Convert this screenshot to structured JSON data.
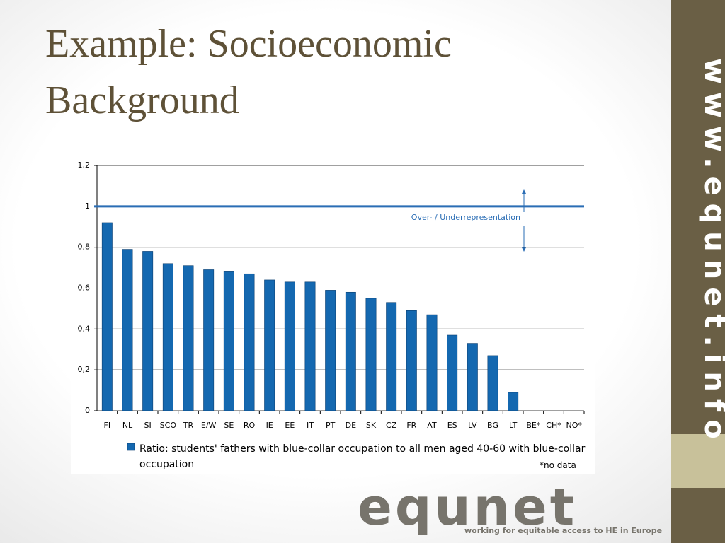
{
  "title": "Example: Socioeconomic Background",
  "side_text": "www.equnet.info",
  "logo": {
    "name": "equnet",
    "tagline": "working for equitable access to HE in Europe"
  },
  "chart_data": {
    "type": "bar",
    "categories": [
      "FI",
      "NL",
      "SI",
      "SCO",
      "TR",
      "E/W",
      "SE",
      "RO",
      "IE",
      "EE",
      "IT",
      "PT",
      "DE",
      "SK",
      "CZ",
      "FR",
      "AT",
      "ES",
      "LV",
      "BG",
      "LT",
      "BE*",
      "CH*",
      "NO*"
    ],
    "series": [
      {
        "name": "Ratio: students' fathers with blue-collar occupation to all men aged 40-60 with blue-collar occupation",
        "color": "#1468b0",
        "values": [
          0.92,
          0.79,
          0.78,
          0.72,
          0.71,
          0.69,
          0.68,
          0.67,
          0.64,
          0.63,
          0.63,
          0.59,
          0.58,
          0.55,
          0.53,
          0.49,
          0.47,
          0.37,
          0.33,
          0.27,
          0.09,
          null,
          null,
          null
        ]
      }
    ],
    "ylim": [
      0,
      1.2
    ],
    "yticks": [
      0,
      {
        "value": 0.2,
        "label": "0,2"
      },
      {
        "value": 0.4,
        "label": "0,4"
      },
      {
        "value": 0.6,
        "label": "0,6"
      },
      {
        "value": 0.8,
        "label": "0,8"
      },
      1,
      {
        "value": 1.2,
        "label": "1,2"
      }
    ],
    "grid": true,
    "reference_line": {
      "value": 1,
      "color": "#2a6db5",
      "label": "Over- / Underrepresentation"
    },
    "note": "*no data"
  }
}
